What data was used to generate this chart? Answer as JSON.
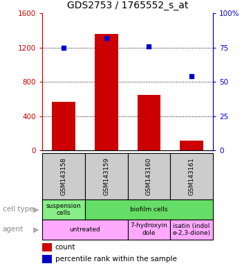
{
  "title": "GDS2753 / 1765552_s_at",
  "samples": [
    "GSM143158",
    "GSM143159",
    "GSM143160",
    "GSM143161"
  ],
  "counts": [
    570,
    1360,
    650,
    110
  ],
  "percentiles": [
    75,
    82,
    76,
    54
  ],
  "ylim_left": [
    0,
    1600
  ],
  "ylim_right": [
    0,
    100
  ],
  "yticks_left": [
    0,
    400,
    800,
    1200,
    1600
  ],
  "yticks_right": [
    0,
    25,
    50,
    75,
    100
  ],
  "bar_color": "#cc0000",
  "dot_color": "#0000cc",
  "cell_type_row": [
    {
      "label": "suspension\ncells",
      "span": [
        0,
        1
      ],
      "color": "#88ee88"
    },
    {
      "label": "biofilm cells",
      "span": [
        1,
        4
      ],
      "color": "#66dd66"
    }
  ],
  "agent_row": [
    {
      "label": "untreated",
      "span": [
        0,
        2
      ],
      "color": "#ffaaff"
    },
    {
      "label": "7-hydroxyin\ndole",
      "span": [
        2,
        3
      ],
      "color": "#ffaaff"
    },
    {
      "label": "isatin (indol\ne-2,3-dione)",
      "span": [
        3,
        4
      ],
      "color": "#ffaaff"
    }
  ],
  "row_label_cell_type": "cell type",
  "row_label_agent": "agent",
  "legend_count_label": "count",
  "legend_pct_label": "percentile rank within the sample",
  "title_fontsize": 10,
  "axis_label_color_left": "#cc0000",
  "axis_label_color_right": "#0000cc",
  "gray_box_color": "#cccccc",
  "fig_width": 3.5,
  "fig_height": 3.84,
  "fig_dpi": 100
}
